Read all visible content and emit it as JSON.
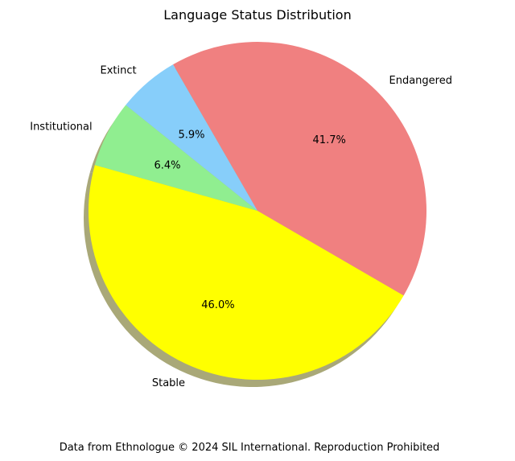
{
  "chart_data": {
    "type": "pie",
    "title": "Language Status Distribution",
    "slices": [
      {
        "label": "Endangered",
        "value": 41.7,
        "pct_label": "41.7%",
        "color": "#f08080"
      },
      {
        "label": "Stable",
        "value": 46.0,
        "pct_label": "46.0%",
        "color": "#ffff00"
      },
      {
        "label": "Institutional",
        "value": 6.4,
        "pct_label": "6.4%",
        "color": "#90ee90"
      },
      {
        "label": "Extinct",
        "value": 5.9,
        "pct_label": "5.9%",
        "color": "#87cefa"
      }
    ],
    "start_angle_deg": 120,
    "direction": "clockwise",
    "shadow": true,
    "shadow_color": "#a9a878"
  },
  "footer": "Data from Ethnologue © 2024 SIL International. Reproduction Prohibited"
}
